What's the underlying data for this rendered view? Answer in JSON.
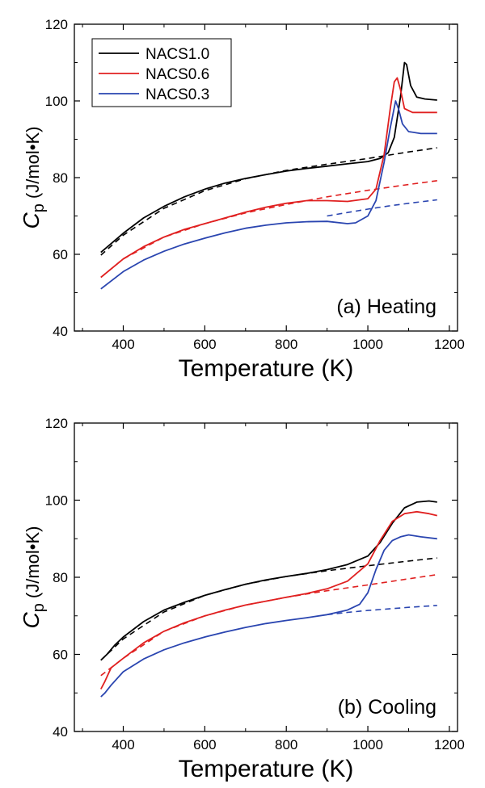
{
  "colors": {
    "NACS1.0": "#000000",
    "NACS0.6": "#e02020",
    "NACS0.3": "#2a45b0"
  },
  "chart_data": [
    {
      "type": "line",
      "annotation": "(a) Heating",
      "xlabel": "Temperature (K)",
      "ylabel_main": "C",
      "ylabel_sub": "p",
      "ylabel_unit": "(J/mol•K)",
      "xlim": [
        280,
        1220
      ],
      "ylim": [
        40,
        120
      ],
      "xticks": [
        400,
        600,
        800,
        1000,
        1200
      ],
      "yticks": [
        40,
        60,
        80,
        100,
        120
      ],
      "legend": {
        "position": "top-left",
        "entries": [
          "NACS1.0",
          "NACS0.6",
          "NACS0.3"
        ]
      },
      "series": [
        {
          "name": "NACS1.0",
          "style": "solid",
          "x": [
            345,
            400,
            450,
            500,
            550,
            600,
            650,
            700,
            750,
            800,
            850,
            900,
            950,
            1000,
            1030,
            1050,
            1065,
            1080,
            1090,
            1095,
            1105,
            1120,
            1140,
            1170
          ],
          "y": [
            60.5,
            65.5,
            69.5,
            72.5,
            75.0,
            77.0,
            78.6,
            79.8,
            80.8,
            81.7,
            82.4,
            83.0,
            83.6,
            84.2,
            85.0,
            86.5,
            90.5,
            101.0,
            110.0,
            109.5,
            104.0,
            101.0,
            100.5,
            100.2
          ]
        },
        {
          "name": "NACS1.0 extrapolation",
          "style": "dashed",
          "x": [
            345,
            400,
            500,
            600,
            700,
            800,
            900,
            1000,
            1100,
            1170
          ],
          "y": [
            59.8,
            65.0,
            72.0,
            76.6,
            79.7,
            81.9,
            83.5,
            85.0,
            86.7,
            87.8
          ]
        },
        {
          "name": "NACS0.6",
          "style": "solid",
          "x": [
            345,
            400,
            450,
            500,
            550,
            600,
            650,
            700,
            750,
            800,
            850,
            900,
            950,
            1000,
            1020,
            1040,
            1055,
            1065,
            1072,
            1080,
            1090,
            1110,
            1140,
            1170
          ],
          "y": [
            54.0,
            58.8,
            62.0,
            64.5,
            66.5,
            68.0,
            69.5,
            71.0,
            72.3,
            73.3,
            74.0,
            74.0,
            73.8,
            74.5,
            77.0,
            86.0,
            98.0,
            105.0,
            106.0,
            103.0,
            98.0,
            97.0,
            97.0,
            97.0
          ]
        },
        {
          "name": "NACS0.6 extrapolation",
          "style": "dashed",
          "x": [
            345,
            400,
            500,
            600,
            700,
            800,
            900,
            1000,
            1100,
            1170
          ],
          "y": [
            54.0,
            58.8,
            64.5,
            68.0,
            70.8,
            73.0,
            75.0,
            76.7,
            78.2,
            79.2
          ]
        },
        {
          "name": "NACS0.3",
          "style": "solid",
          "x": [
            345,
            400,
            450,
            500,
            550,
            600,
            650,
            700,
            750,
            800,
            850,
            900,
            950,
            970,
            1000,
            1020,
            1040,
            1055,
            1068,
            1075,
            1085,
            1100,
            1130,
            1170
          ],
          "y": [
            51.0,
            55.5,
            58.5,
            60.8,
            62.7,
            64.2,
            65.6,
            66.8,
            67.6,
            68.2,
            68.5,
            68.6,
            68.0,
            68.2,
            70.0,
            74.0,
            84.0,
            93.0,
            100.0,
            98.0,
            94.0,
            92.0,
            91.5,
            91.5
          ]
        },
        {
          "name": "NACS0.3 extrapolation",
          "style": "dashed",
          "x": [
            900,
            950,
            1000,
            1050,
            1100,
            1170
          ],
          "y": [
            70.0,
            70.9,
            71.8,
            72.6,
            73.3,
            74.2
          ]
        }
      ]
    },
    {
      "type": "line",
      "annotation": "(b) Cooling",
      "xlabel": "Temperature (K)",
      "ylabel_main": "C",
      "ylabel_sub": "p",
      "ylabel_unit": "(J/mol•K)",
      "xlim": [
        280,
        1220
      ],
      "ylim": [
        40,
        120
      ],
      "xticks": [
        400,
        600,
        800,
        1000,
        1200
      ],
      "yticks": [
        40,
        60,
        80,
        100,
        120
      ],
      "legend": {
        "position": "none",
        "entries": []
      },
      "series": [
        {
          "name": "NACS1.0",
          "style": "solid",
          "x": [
            345,
            360,
            380,
            400,
            450,
            500,
            550,
            600,
            650,
            700,
            750,
            800,
            850,
            900,
            950,
            1000,
            1030,
            1060,
            1090,
            1120,
            1150,
            1170
          ],
          "y": [
            58.5,
            60.0,
            62.5,
            64.5,
            68.5,
            71.5,
            73.5,
            75.3,
            76.8,
            78.2,
            79.3,
            80.2,
            81.0,
            82.0,
            83.3,
            85.5,
            89.0,
            94.0,
            98.0,
            99.5,
            99.8,
            99.5
          ]
        },
        {
          "name": "NACS1.0 extrapolation",
          "style": "dashed",
          "x": [
            345,
            400,
            500,
            600,
            700,
            800,
            900,
            1000,
            1100,
            1170
          ],
          "y": [
            58.5,
            64.0,
            71.0,
            75.3,
            78.2,
            80.2,
            81.7,
            83.0,
            84.2,
            85.0
          ]
        },
        {
          "name": "NACS0.6",
          "style": "solid",
          "x": [
            345,
            355,
            370,
            400,
            450,
            500,
            550,
            600,
            650,
            700,
            750,
            800,
            850,
            900,
            950,
            1000,
            1030,
            1060,
            1090,
            1120,
            1150,
            1170
          ],
          "y": [
            51.0,
            53.0,
            56.5,
            59.0,
            63.0,
            66.0,
            68.2,
            70.0,
            71.5,
            72.8,
            73.8,
            74.8,
            75.8,
            77.0,
            79.0,
            83.5,
            89.5,
            94.5,
            96.5,
            97.0,
            96.5,
            96.0
          ]
        },
        {
          "name": "NACS0.6 extrapolation",
          "style": "dashed",
          "x": [
            345,
            400,
            500,
            600,
            700,
            800,
            900,
            1000,
            1100,
            1170
          ],
          "y": [
            54.5,
            59.0,
            66.0,
            70.0,
            72.8,
            74.8,
            76.5,
            78.0,
            79.6,
            80.7
          ]
        },
        {
          "name": "NACS0.3",
          "style": "solid",
          "x": [
            345,
            355,
            370,
            400,
            450,
            500,
            550,
            600,
            650,
            700,
            750,
            800,
            850,
            900,
            950,
            980,
            1000,
            1020,
            1040,
            1060,
            1080,
            1100,
            1130,
            1170
          ],
          "y": [
            49.0,
            50.0,
            52.0,
            55.5,
            58.8,
            61.2,
            63.0,
            64.5,
            65.8,
            67.0,
            68.0,
            68.8,
            69.5,
            70.3,
            71.5,
            73.0,
            76.0,
            82.0,
            87.0,
            89.5,
            90.5,
            91.0,
            90.5,
            90.0
          ]
        },
        {
          "name": "NACS0.3 extrapolation",
          "style": "dashed",
          "x": [
            900,
            950,
            1000,
            1050,
            1100,
            1170
          ],
          "y": [
            70.3,
            70.9,
            71.4,
            71.8,
            72.2,
            72.7
          ]
        }
      ]
    }
  ]
}
